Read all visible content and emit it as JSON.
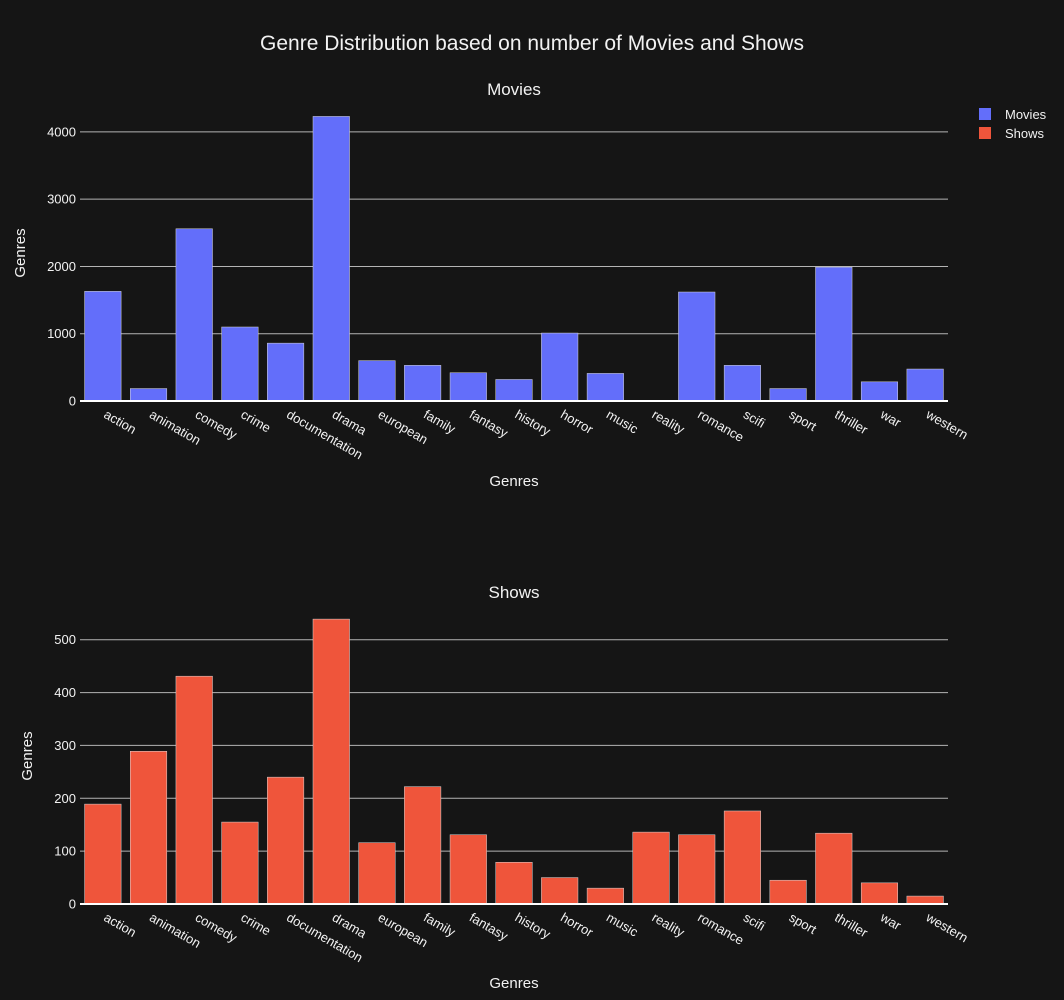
{
  "title": "Genre Distribution based on number of Movies and Shows",
  "legend": [
    {
      "name": "Movies",
      "color": "#636efa"
    },
    {
      "name": "Shows",
      "color": "#ef553b"
    }
  ],
  "chart_data": [
    {
      "type": "bar",
      "title": "Movies",
      "xlabel": "Genres",
      "ylabel": "Genres",
      "color": "#636efa",
      "categories": [
        "action",
        "animation",
        "comedy",
        "crime",
        "documentation",
        "drama",
        "european",
        "family",
        "fantasy",
        "history",
        "horror",
        "music",
        "reality",
        "romance",
        "scifi",
        "sport",
        "thriller",
        "war",
        "western"
      ],
      "values": [
        1630,
        185,
        2560,
        1100,
        860,
        4230,
        600,
        530,
        420,
        320,
        1010,
        410,
        10,
        1620,
        530,
        185,
        1990,
        285,
        475
      ],
      "ylim": [
        0,
        4400
      ],
      "yticks": [
        0,
        1000,
        2000,
        3000,
        4000
      ],
      "grid": true,
      "legend_position": "top-right"
    },
    {
      "type": "bar",
      "title": "Shows",
      "xlabel": "Genres",
      "ylabel": "Genres",
      "color": "#ef553b",
      "categories": [
        "action",
        "animation",
        "comedy",
        "crime",
        "documentation",
        "drama",
        "european",
        "family",
        "fantasy",
        "history",
        "horror",
        "music",
        "reality",
        "romance",
        "scifi",
        "sport",
        "thriller",
        "war",
        "western"
      ],
      "values": [
        189,
        289,
        431,
        155,
        240,
        539,
        116,
        222,
        131,
        79,
        50,
        30,
        136,
        131,
        176,
        45,
        134,
        40,
        15
      ],
      "ylim": [
        0,
        560
      ],
      "yticks": [
        0,
        100,
        200,
        300,
        400,
        500
      ],
      "grid": true,
      "legend_position": "top-right"
    }
  ]
}
